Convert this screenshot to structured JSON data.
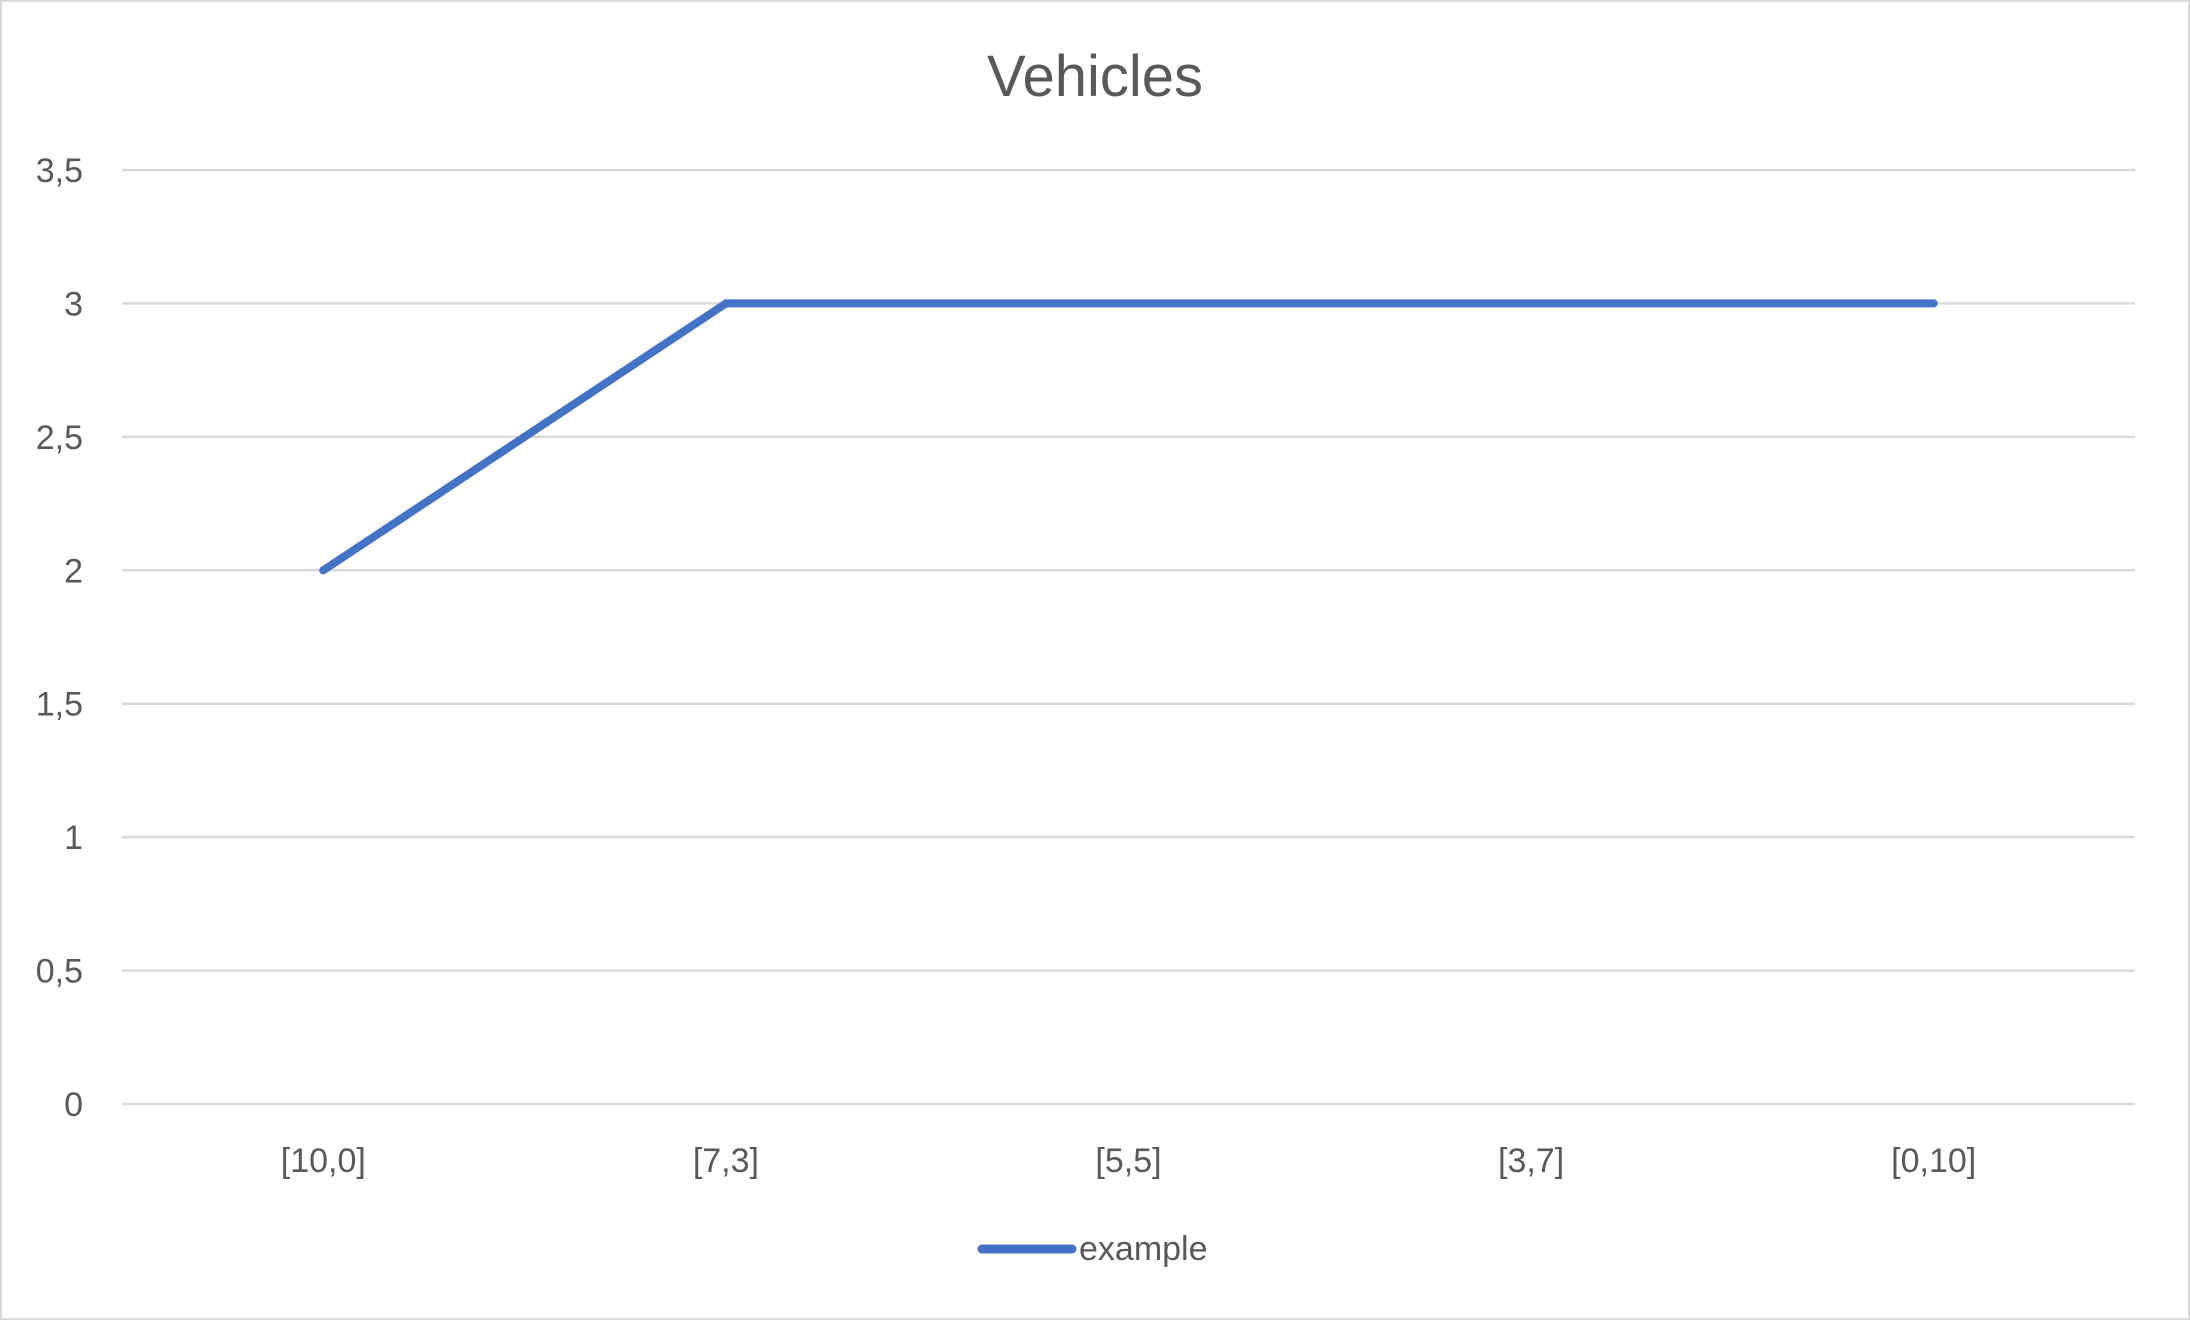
{
  "chart_data": {
    "type": "line",
    "title": "Vehicles",
    "xlabel": "",
    "ylabel": "",
    "categories": [
      "[10,0]",
      "[7,3]",
      "[5,5]",
      "[3,7]",
      "[0,10]"
    ],
    "series": [
      {
        "name": "example",
        "values": [
          2,
          3,
          3,
          3,
          3
        ],
        "color": "#4472C4"
      }
    ],
    "ylim": [
      0,
      3.5
    ],
    "yticks": [
      0,
      0.5,
      1,
      1.5,
      2,
      2.5,
      3,
      3.5
    ],
    "ytick_labels": [
      "0",
      "0,5",
      "1",
      "1,5",
      "2",
      "2,5",
      "3",
      "3,5"
    ],
    "grid": true,
    "legend": "bottom"
  }
}
